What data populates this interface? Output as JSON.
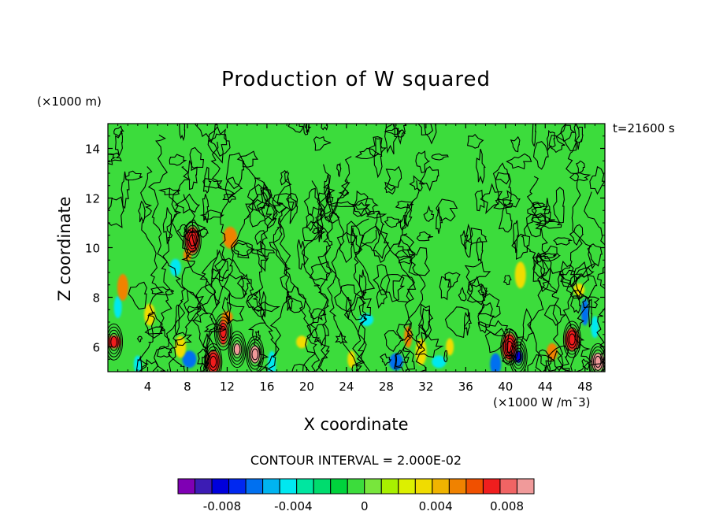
{
  "chart_data": {
    "type": "heatmap",
    "title": "Production of W squared",
    "xlabel": "X coordinate",
    "ylabel": "Z coordinate",
    "x_unit_label": "(×1000 W /m¯3)",
    "y_unit_label": "(×1000 m)",
    "time_label": "t=21600 s",
    "contour_interval_label": "CONTOUR INTERVAL = 2.000E-02",
    "xlim": [
      0,
      50
    ],
    "ylim": [
      5,
      15
    ],
    "x_ticks": [
      4,
      8,
      12,
      16,
      20,
      24,
      28,
      32,
      36,
      40,
      44,
      48
    ],
    "y_ticks": [
      6,
      8,
      10,
      12,
      14
    ],
    "x_tick_labels": [
      "4",
      "8",
      "12",
      "16",
      "20",
      "24",
      "28",
      "32",
      "36",
      "40",
      "44",
      "48"
    ],
    "y_tick_labels": [
      "6",
      "8",
      "10",
      "12",
      "14"
    ],
    "field_background_value": 0,
    "features": [
      {
        "x": 13.0,
        "z": 5.9,
        "value": 0.01
      },
      {
        "x": 14.8,
        "z": 5.7,
        "value": 0.01
      },
      {
        "x": 10.6,
        "z": 5.4,
        "value": 0.008
      },
      {
        "x": 11.6,
        "z": 6.6,
        "value": 0.008
      },
      {
        "x": 12.0,
        "z": 7.2,
        "value": 0.006
      },
      {
        "x": 8.2,
        "z": 5.5,
        "value": -0.006
      },
      {
        "x": 1.0,
        "z": 7.6,
        "value": -0.004
      },
      {
        "x": 1.5,
        "z": 8.4,
        "value": 0.006
      },
      {
        "x": 0.6,
        "z": 6.2,
        "value": 0.008
      },
      {
        "x": 3.0,
        "z": 5.3,
        "value": -0.004
      },
      {
        "x": 7.3,
        "z": 6.0,
        "value": 0.004
      },
      {
        "x": 8.5,
        "z": 10.3,
        "value": 0.008
      },
      {
        "x": 8.0,
        "z": 9.7,
        "value": 0.006
      },
      {
        "x": 6.8,
        "z": 9.2,
        "value": -0.004
      },
      {
        "x": 12.3,
        "z": 10.4,
        "value": 0.006
      },
      {
        "x": 16.5,
        "z": 5.3,
        "value": -0.004
      },
      {
        "x": 19.5,
        "z": 6.2,
        "value": 0.004
      },
      {
        "x": 29.0,
        "z": 5.4,
        "value": -0.006
      },
      {
        "x": 30.2,
        "z": 6.4,
        "value": 0.006
      },
      {
        "x": 31.5,
        "z": 5.8,
        "value": 0.004
      },
      {
        "x": 33.3,
        "z": 5.4,
        "value": -0.004
      },
      {
        "x": 34.4,
        "z": 6.0,
        "value": 0.004
      },
      {
        "x": 39.0,
        "z": 5.3,
        "value": -0.006
      },
      {
        "x": 40.4,
        "z": 6.0,
        "value": 0.008
      },
      {
        "x": 41.3,
        "z": 5.6,
        "value": -0.008
      },
      {
        "x": 44.7,
        "z": 5.8,
        "value": 0.006
      },
      {
        "x": 46.7,
        "z": 6.3,
        "value": 0.008
      },
      {
        "x": 48.0,
        "z": 7.4,
        "value": -0.006
      },
      {
        "x": 47.4,
        "z": 8.3,
        "value": 0.004
      },
      {
        "x": 49.3,
        "z": 5.4,
        "value": 0.01
      },
      {
        "x": 49.0,
        "z": 6.8,
        "value": -0.004
      },
      {
        "x": 41.5,
        "z": 8.9,
        "value": 0.004
      },
      {
        "x": 26.0,
        "z": 7.1,
        "value": -0.004
      },
      {
        "x": 24.5,
        "z": 5.5,
        "value": 0.004
      },
      {
        "x": 4.2,
        "z": 7.3,
        "value": 0.004
      }
    ],
    "colorbar": {
      "boundaries": [
        -0.01,
        -0.009,
        -0.008,
        -0.007,
        -0.006,
        -0.005,
        -0.004,
        -0.003,
        -0.002,
        -0.001,
        0,
        0.001,
        0.002,
        0.003,
        0.004,
        0.005,
        0.006,
        0.007,
        0.008,
        0.009,
        0.01
      ],
      "colors": [
        "#7f00b4",
        "#3c1cb4",
        "#0000dc",
        "#0028f0",
        "#0070f0",
        "#00b4f0",
        "#00e8f0",
        "#00e6a0",
        "#00dc6e",
        "#00d23c",
        "#3cdc3c",
        "#78e63c",
        "#a8f000",
        "#dcf000",
        "#f0dc00",
        "#f0b400",
        "#f08200",
        "#f05000",
        "#f01e1e",
        "#f06464",
        "#f09a9a"
      ],
      "tick_values": [
        -0.008,
        -0.004,
        0,
        0.004,
        0.008
      ],
      "tick_labels": [
        "-0.008",
        "-0.004",
        "0",
        "0.004",
        "0.008"
      ]
    }
  }
}
